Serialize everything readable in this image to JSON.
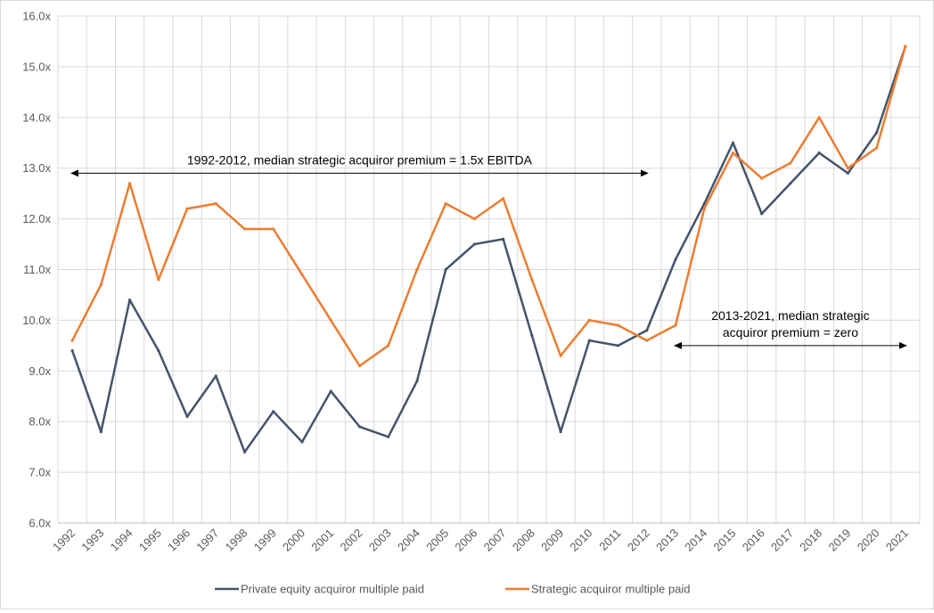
{
  "chart_data": {
    "type": "line",
    "title": "",
    "xlabel": "",
    "ylabel": "",
    "x": [
      "1992",
      "1993",
      "1994",
      "1995",
      "1996",
      "1997",
      "1998",
      "1999",
      "2000",
      "2001",
      "2002",
      "2003",
      "2004",
      "2005",
      "2006",
      "2007",
      "2008",
      "2009",
      "2010",
      "2011",
      "2012",
      "2013",
      "2014",
      "2015",
      "2016",
      "2017",
      "2018",
      "2019",
      "2020",
      "2021"
    ],
    "ylim": [
      6.0,
      16.0
    ],
    "yticks": [
      6.0,
      7.0,
      8.0,
      9.0,
      10.0,
      11.0,
      12.0,
      13.0,
      14.0,
      15.0,
      16.0
    ],
    "ytick_labels": [
      "6.0x",
      "7.0x",
      "8.0x",
      "9.0x",
      "10.0x",
      "11.0x",
      "12.0x",
      "13.0x",
      "14.0x",
      "15.0x",
      "16.0x"
    ],
    "grid": true,
    "legend_position": "bottom",
    "series": [
      {
        "name": "Private equity acquiror multiple paid",
        "color": "#44546A",
        "values": [
          9.4,
          7.8,
          10.4,
          9.4,
          8.1,
          8.9,
          7.4,
          8.2,
          7.6,
          8.6,
          7.9,
          7.7,
          8.8,
          11.0,
          11.5,
          11.6,
          9.7,
          7.8,
          9.6,
          9.5,
          9.8,
          11.2,
          12.3,
          13.5,
          12.1,
          12.7,
          13.3,
          12.9,
          13.7,
          15.4
        ]
      },
      {
        "name": "Strategic acquiror multiple paid",
        "color": "#ED7D31",
        "values": [
          9.6,
          10.7,
          12.7,
          10.8,
          12.2,
          12.3,
          11.8,
          11.8,
          10.9,
          10.0,
          9.1,
          9.5,
          11.0,
          12.3,
          12.0,
          12.4,
          10.8,
          9.3,
          10.0,
          9.9,
          9.6,
          9.9,
          12.2,
          13.3,
          12.8,
          13.1,
          14.0,
          13.0,
          13.4,
          15.4
        ]
      }
    ],
    "annotations": [
      {
        "lines": [
          "1992-2012, median strategic acquiror premium = 1.5x EBITDA"
        ],
        "arrow_from": "1992",
        "arrow_to": "2012",
        "arrow_level": 12.9,
        "arrow_style": "double-headed"
      },
      {
        "lines": [
          "2013-2021, median strategic",
          "acquiror premium = zero"
        ],
        "arrow_from": "2013",
        "arrow_to": "2021",
        "arrow_level": 9.5,
        "arrow_style": "double-headed"
      }
    ]
  }
}
